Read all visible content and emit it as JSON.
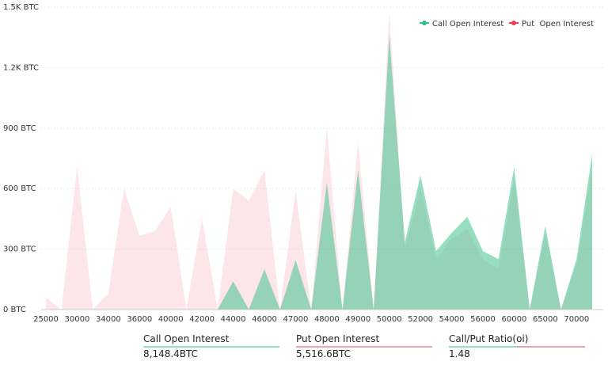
{
  "chart_data": {
    "type": "area",
    "categories": [
      "25000",
      null,
      "30000",
      null,
      "34000",
      null,
      "36000",
      null,
      "40000",
      null,
      "42000",
      null,
      "44000",
      null,
      "46000",
      null,
      "47000",
      null,
      "48000",
      null,
      "49000",
      null,
      "50000",
      null,
      "52000",
      null,
      "54000",
      null,
      "56000",
      null,
      "60000",
      null,
      "65000",
      null,
      "70000",
      null
    ],
    "series": [
      {
        "name": "Call Open Interest",
        "color": "#2ebd85",
        "values": [
          0,
          0,
          0,
          0,
          0,
          0,
          0,
          0,
          0,
          0,
          0,
          0,
          140,
          0,
          200,
          0,
          245,
          0,
          630,
          0,
          690,
          0,
          1360,
          335,
          665,
          290,
          380,
          460,
          290,
          250,
          705,
          0,
          415,
          0,
          250,
          770
        ]
      },
      {
        "name": "Put  Open Interest",
        "color": "#f23c5a",
        "values": [
          60,
          0,
          710,
          0,
          80,
          600,
          365,
          390,
          510,
          0,
          455,
          0,
          600,
          540,
          690,
          0,
          590,
          0,
          900,
          0,
          830,
          0,
          1480,
          300,
          600,
          250,
          350,
          400,
          250,
          200,
          650,
          0,
          380,
          0,
          220,
          700
        ]
      }
    ],
    "ylim": [
      0,
      1500
    ],
    "yticks": [
      {
        "value": 0,
        "label": "0 BTC"
      },
      {
        "value": 300,
        "label": "300 BTC"
      },
      {
        "value": 600,
        "label": "600 BTC"
      },
      {
        "value": 900,
        "label": "900 BTC"
      },
      {
        "value": 1200,
        "label": "1.2K BTC"
      },
      {
        "value": 1500,
        "label": "1.5K BTC"
      }
    ],
    "grid": true
  },
  "stats": [
    {
      "label": "Call Open Interest",
      "value": "8,148.4BTC"
    },
    {
      "label": "Put Open Interest",
      "value": "5,516.6BTC"
    },
    {
      "label": "Call/Put Ratio(oi)",
      "value": "1.48"
    }
  ]
}
